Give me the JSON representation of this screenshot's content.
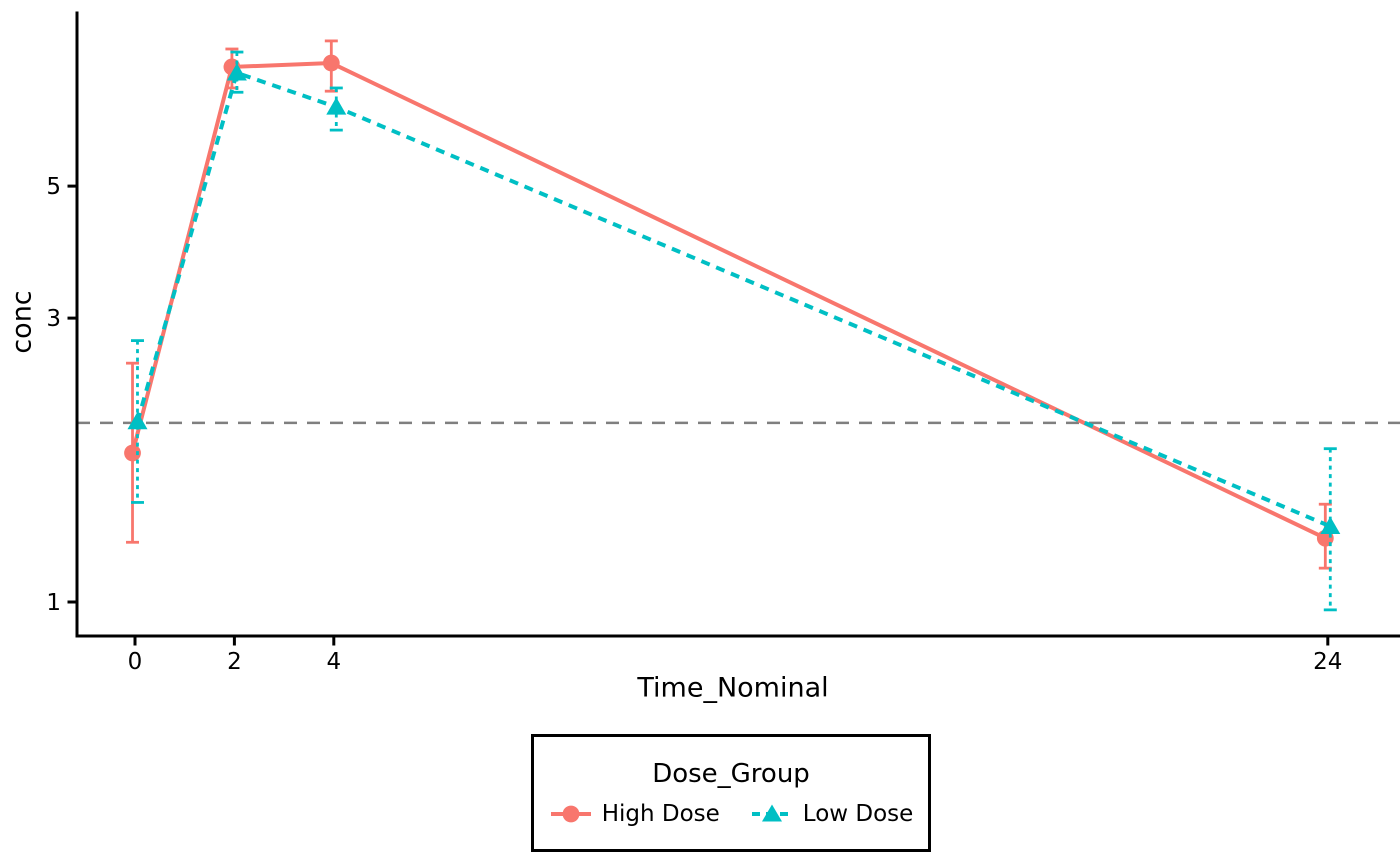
{
  "chart_data": {
    "type": "line",
    "title": "",
    "xlabel": "Time_Nominal",
    "ylabel": "conc",
    "x": [
      0,
      2,
      4,
      24
    ],
    "x_tick_labels": [
      "0",
      "2",
      "4",
      "24"
    ],
    "y_ticks": [
      1,
      3,
      5
    ],
    "y_tick_labels": [
      "1",
      "3",
      "5"
    ],
    "y_scale": "log10",
    "ylim": [
      0.88,
      9.8
    ],
    "xlim": [
      -1.17,
      25.4
    ],
    "grid": false,
    "legend": {
      "title": "Dose_Group",
      "position": "bottom"
    },
    "reference_line": {
      "y": 2.0,
      "color": "#7F7F7F",
      "linestyle": "dashed"
    },
    "series": [
      {
        "name": "High Dose",
        "color": "#F8766D",
        "marker": "circle",
        "linestyle": "solid",
        "x_offset": -0.05,
        "values": [
          1.78,
          7.93,
          8.05,
          1.28
        ],
        "err_low": [
          1.26,
          7.31,
          7.22,
          1.14
        ],
        "err_high": [
          2.52,
          8.5,
          8.77,
          1.46
        ]
      },
      {
        "name": "Low Dose",
        "color": "#00BFC4",
        "marker": "triangle",
        "linestyle": "dashed",
        "x_offset": 0.05,
        "values": [
          2.01,
          7.75,
          6.79,
          1.34
        ],
        "err_low": [
          1.47,
          7.19,
          6.21,
          0.97
        ],
        "err_high": [
          2.75,
          8.4,
          7.31,
          1.81
        ]
      }
    ]
  },
  "colors": {
    "axis": "#000000",
    "text": "#000000",
    "background": "#FFFFFF"
  }
}
